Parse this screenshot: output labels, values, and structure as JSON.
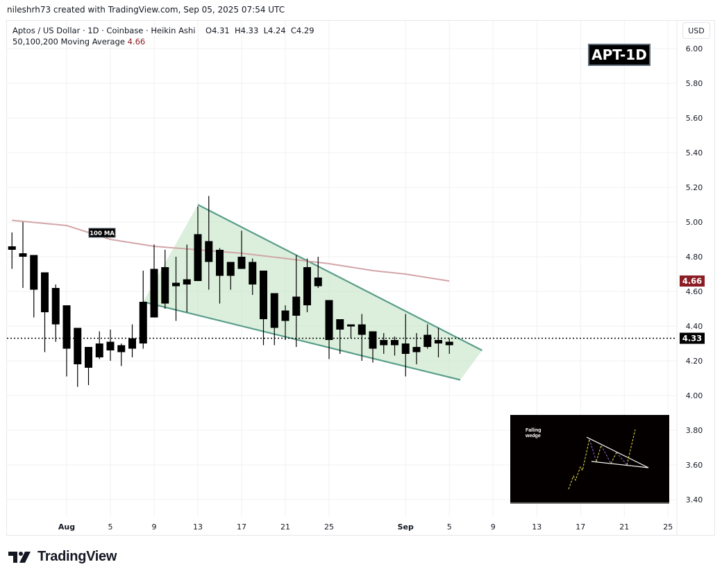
{
  "credit": "nileshrh73 created with TradingView.com, Sep 05, 2025 07:54 UTC",
  "legend": {
    "symbol_line": "Aptos / US Dollar · 1D · Coinbase · Heikin Ashi",
    "ohlc": "O4.31  H4.33  L4.24  C4.29",
    "ma_label": "50,100,200 Moving Average",
    "ma_value": "4.66"
  },
  "currency_button": "USD",
  "badge": "APT-1D",
  "ma_tag": "100 MA",
  "inset": {
    "label_line1": "Falling",
    "label_line2": "wedge"
  },
  "price_tags": {
    "ma": {
      "value": "4.66",
      "color": "#8b1d24"
    },
    "last": {
      "value": "4.33",
      "color": "#000000"
    }
  },
  "brand": "TradingView",
  "colors": {
    "candle": "#000000",
    "wedge_fill": "#c8e6c9",
    "wedge_line": "#5a9e8a",
    "ma_line": "#d4a5a8",
    "grid": "#f0f1f3"
  },
  "chart_data": {
    "type": "candlestick",
    "title": "Aptos / US Dollar · 1D · Coinbase · Heikin Ashi",
    "xlabel": "",
    "ylabel": "USD",
    "ylim": [
      3.32,
      6.16
    ],
    "grid": true,
    "y_ticks": [
      "6.00",
      "5.80",
      "5.60",
      "5.40",
      "5.20",
      "5.00",
      "4.80",
      "4.60",
      "4.40",
      "4.20",
      "4.00",
      "3.80",
      "3.60",
      "3.40"
    ],
    "x_ticks": [
      "Aug",
      "5",
      "9",
      "13",
      "17",
      "21",
      "25",
      "Sep",
      "5",
      "9",
      "13",
      "17",
      "21",
      "25"
    ],
    "candles": [
      {
        "d": "Jul 27",
        "o": 4.84,
        "h": 4.94,
        "l": 4.73,
        "c": 4.86
      },
      {
        "d": "Jul 28",
        "o": 4.8,
        "h": 5.0,
        "l": 4.62,
        "c": 4.82
      },
      {
        "d": "Jul 29",
        "o": 4.81,
        "h": 4.81,
        "l": 4.45,
        "c": 4.61
      },
      {
        "d": "Jul 30",
        "o": 4.71,
        "h": 4.71,
        "l": 4.25,
        "c": 4.48
      },
      {
        "d": "Jul 31",
        "o": 4.62,
        "h": 4.64,
        "l": 4.31,
        "c": 4.41
      },
      {
        "d": "Aug 1",
        "o": 4.52,
        "h": 4.52,
        "l": 4.11,
        "c": 4.27
      },
      {
        "d": "Aug 2",
        "o": 4.39,
        "h": 4.39,
        "l": 4.05,
        "c": 4.18
      },
      {
        "d": "Aug 3",
        "o": 4.28,
        "h": 4.28,
        "l": 4.06,
        "c": 4.16
      },
      {
        "d": "Aug 4",
        "o": 4.3,
        "h": 4.37,
        "l": 4.21,
        "c": 4.22
      },
      {
        "d": "Aug 5",
        "o": 4.31,
        "h": 4.38,
        "l": 4.2,
        "c": 4.26
      },
      {
        "d": "Aug 6",
        "o": 4.29,
        "h": 4.3,
        "l": 4.17,
        "c": 4.25
      },
      {
        "d": "Aug 7",
        "o": 4.33,
        "h": 4.41,
        "l": 4.22,
        "c": 4.27
      },
      {
        "d": "Aug 8",
        "o": 4.54,
        "h": 4.72,
        "l": 4.27,
        "c": 4.3
      },
      {
        "d": "Aug 9",
        "o": 4.73,
        "h": 4.87,
        "l": 4.45,
        "c": 4.45
      },
      {
        "d": "Aug 10",
        "o": 4.74,
        "h": 4.84,
        "l": 4.5,
        "c": 4.53
      },
      {
        "d": "Aug 11",
        "o": 4.65,
        "h": 4.8,
        "l": 4.43,
        "c": 4.63
      },
      {
        "d": "Aug 12",
        "o": 4.67,
        "h": 4.87,
        "l": 4.48,
        "c": 4.64
      },
      {
        "d": "Aug 13",
        "o": 4.93,
        "h": 5.09,
        "l": 4.66,
        "c": 4.66
      },
      {
        "d": "Aug 14",
        "o": 4.89,
        "h": 5.15,
        "l": 4.61,
        "c": 4.77
      },
      {
        "d": "Aug 15",
        "o": 4.84,
        "h": 4.85,
        "l": 4.53,
        "c": 4.69
      },
      {
        "d": "Aug 16",
        "o": 4.77,
        "h": 4.77,
        "l": 4.61,
        "c": 4.69
      },
      {
        "d": "Aug 17",
        "o": 4.8,
        "h": 4.95,
        "l": 4.74,
        "c": 4.73
      },
      {
        "d": "Aug 18",
        "o": 4.77,
        "h": 4.79,
        "l": 4.58,
        "c": 4.64
      },
      {
        "d": "Aug 19",
        "o": 4.72,
        "h": 4.72,
        "l": 4.29,
        "c": 4.44
      },
      {
        "d": "Aug 20",
        "o": 4.59,
        "h": 4.59,
        "l": 4.29,
        "c": 4.39
      },
      {
        "d": "Aug 21",
        "o": 4.49,
        "h": 4.52,
        "l": 4.32,
        "c": 4.43
      },
      {
        "d": "Aug 22",
        "o": 4.57,
        "h": 4.81,
        "l": 4.28,
        "c": 4.46
      },
      {
        "d": "Aug 23",
        "o": 4.74,
        "h": 4.79,
        "l": 4.48,
        "c": 4.52
      },
      {
        "d": "Aug 24",
        "o": 4.68,
        "h": 4.8,
        "l": 4.62,
        "c": 4.63
      },
      {
        "d": "Aug 25",
        "o": 4.55,
        "h": 4.55,
        "l": 4.21,
        "c": 4.32
      },
      {
        "d": "Aug 26",
        "o": 4.44,
        "h": 4.44,
        "l": 4.24,
        "c": 4.38
      },
      {
        "d": "Aug 27",
        "o": 4.41,
        "h": 4.41,
        "l": 4.33,
        "c": 4.4
      },
      {
        "d": "Aug 28",
        "o": 4.41,
        "h": 4.47,
        "l": 4.2,
        "c": 4.35
      },
      {
        "d": "Aug 29",
        "o": 4.37,
        "h": 4.37,
        "l": 4.19,
        "c": 4.27
      },
      {
        "d": "Aug 30",
        "o": 4.32,
        "h": 4.36,
        "l": 4.24,
        "c": 4.29
      },
      {
        "d": "Aug 31",
        "o": 4.32,
        "h": 4.34,
        "l": 4.23,
        "c": 4.29
      },
      {
        "d": "Sep 1",
        "o": 4.3,
        "h": 4.47,
        "l": 4.11,
        "c": 4.24
      },
      {
        "d": "Sep 2",
        "o": 4.28,
        "h": 4.36,
        "l": 4.18,
        "c": 4.25
      },
      {
        "d": "Sep 3",
        "o": 4.35,
        "h": 4.41,
        "l": 4.27,
        "c": 4.28
      },
      {
        "d": "Sep 4",
        "o": 4.32,
        "h": 4.39,
        "l": 4.22,
        "c": 4.3
      },
      {
        "d": "Sep 5",
        "o": 4.31,
        "h": 4.33,
        "l": 4.24,
        "c": 4.29
      }
    ],
    "series": [
      {
        "name": "100 MA",
        "points": [
          {
            "d": "Jul 27",
            "v": 5.01
          },
          {
            "d": "Aug 1",
            "v": 4.98
          },
          {
            "d": "Aug 5",
            "v": 4.9
          },
          {
            "d": "Aug 9",
            "v": 4.86
          },
          {
            "d": "Aug 13",
            "v": 4.84
          },
          {
            "d": "Aug 17",
            "v": 4.82
          },
          {
            "d": "Aug 21",
            "v": 4.79
          },
          {
            "d": "Aug 25",
            "v": 4.76
          },
          {
            "d": "Aug 29",
            "v": 4.72
          },
          {
            "d": "Sep 1",
            "v": 4.7
          },
          {
            "d": "Sep 5",
            "v": 4.66
          }
        ]
      }
    ],
    "annotations": [
      {
        "type": "falling-wedge",
        "upper": [
          {
            "d": "Aug 13",
            "v": 5.1
          },
          {
            "d": "Sep 8",
            "v": 4.26
          }
        ],
        "lower": [
          {
            "d": "Aug 8",
            "v": 4.54
          },
          {
            "d": "Sep 6",
            "v": 4.09
          }
        ]
      },
      {
        "type": "horizontal-dotted",
        "v": 4.33,
        "label": "4.33"
      },
      {
        "type": "label",
        "text": "100 MA"
      },
      {
        "type": "label",
        "text": "APT-1D"
      },
      {
        "type": "image",
        "text": "Falling wedge"
      }
    ],
    "last_price": 4.33,
    "ma_value": 4.66
  }
}
